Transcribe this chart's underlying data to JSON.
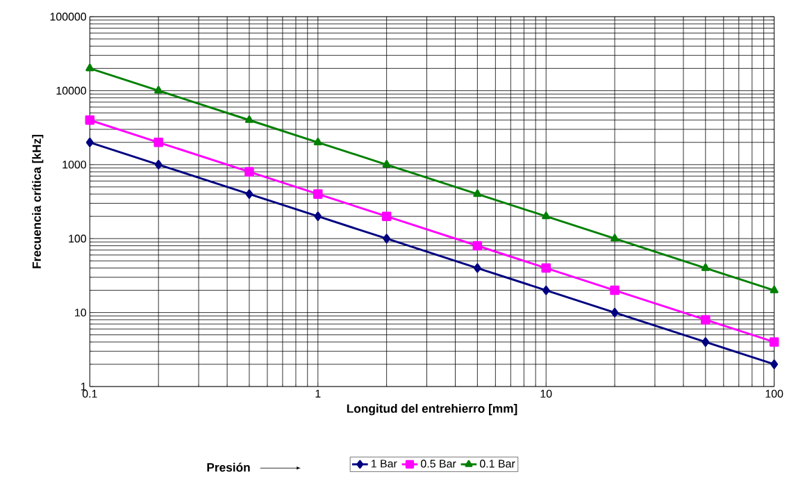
{
  "chart_data": {
    "type": "line",
    "xlabel": "Longitud del entrehierro   [mm]",
    "ylabel": "Frecuencia crítica   [kHz]",
    "legend_title": "Presión",
    "log": "xy",
    "grid": true,
    "legend": "bottom",
    "line_style": "solid",
    "x": [
      0.1,
      0.2,
      0.5,
      1,
      2,
      5,
      10,
      20,
      50,
      100
    ],
    "xlim": [
      0.1,
      100
    ],
    "ylim": [
      1,
      100000
    ],
    "xticks": [
      0.1,
      1,
      10,
      100
    ],
    "yticks": [
      1,
      10,
      100,
      1000,
      10000,
      100000
    ],
    "series": [
      {
        "name": "1 Bar",
        "color": "#000080",
        "marker": "diamond",
        "values": [
          2000,
          1000,
          400,
          200,
          100,
          40,
          20,
          10,
          4,
          2
        ]
      },
      {
        "name": "0.5 Bar",
        "color": "#ff00ff",
        "marker": "square",
        "values": [
          4000,
          2000,
          800,
          400,
          200,
          80,
          40,
          20,
          8,
          4
        ]
      },
      {
        "name": "0.1 Bar",
        "color": "#008000",
        "marker": "triangle",
        "values": [
          20000,
          10000,
          4000,
          2000,
          1000,
          400,
          200,
          100,
          40,
          20
        ]
      }
    ]
  }
}
